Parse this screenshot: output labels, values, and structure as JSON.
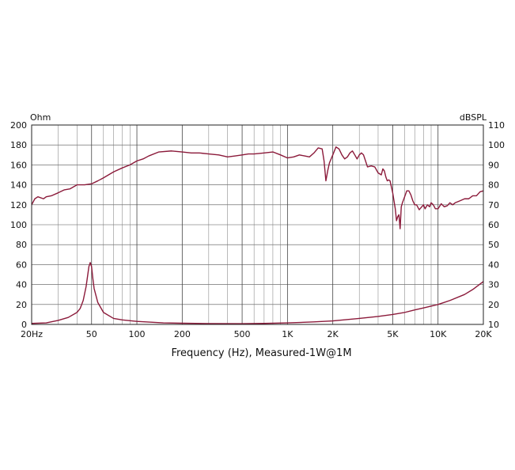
{
  "chart_data": {
    "type": "line",
    "xlabel": "Frequency (Hz), Measured-1W@1M",
    "x_scale": "log",
    "xlim": [
      20,
      20000
    ],
    "x_ticks": [
      {
        "value": 20,
        "label": "20Hz"
      },
      {
        "value": 50,
        "label": "50"
      },
      {
        "value": 100,
        "label": "100"
      },
      {
        "value": 200,
        "label": "200"
      },
      {
        "value": 500,
        "label": "500"
      },
      {
        "value": 1000,
        "label": "1K"
      },
      {
        "value": 2000,
        "label": "2K"
      },
      {
        "value": 5000,
        "label": "5K"
      },
      {
        "value": 10000,
        "label": "10K"
      },
      {
        "value": 20000,
        "label": "20K"
      }
    ],
    "y_left": {
      "unit": "Ohm",
      "lim": [
        0,
        200
      ],
      "ticks": [
        0,
        20,
        40,
        60,
        80,
        100,
        120,
        140,
        160,
        180,
        200
      ]
    },
    "y_right": {
      "unit": "dBSPL",
      "lim": [
        10,
        110
      ],
      "ticks": [
        10,
        20,
        30,
        40,
        50,
        60,
        70,
        80,
        90,
        100,
        110
      ]
    },
    "grid": true,
    "line_color": "#8b1a3a",
    "series": [
      {
        "axis": "right",
        "points": [
          [
            20,
            70
          ],
          [
            21,
            73
          ],
          [
            22,
            74
          ],
          [
            24,
            73
          ],
          [
            25,
            74
          ],
          [
            27,
            74.5
          ],
          [
            30,
            76
          ],
          [
            33,
            77.5
          ],
          [
            36,
            78
          ],
          [
            40,
            80
          ],
          [
            45,
            80
          ],
          [
            50,
            80.5
          ],
          [
            55,
            82
          ],
          [
            60,
            83.5
          ],
          [
            70,
            86.5
          ],
          [
            80,
            88.5
          ],
          [
            90,
            90
          ],
          [
            100,
            92
          ],
          [
            110,
            93
          ],
          [
            120,
            94.5
          ],
          [
            140,
            96.5
          ],
          [
            170,
            97
          ],
          [
            200,
            96.5
          ],
          [
            230,
            96
          ],
          [
            260,
            96
          ],
          [
            300,
            95.5
          ],
          [
            350,
            95
          ],
          [
            400,
            94
          ],
          [
            450,
            94.5
          ],
          [
            500,
            95
          ],
          [
            550,
            95.5
          ],
          [
            600,
            95.5
          ],
          [
            700,
            96
          ],
          [
            800,
            96.5
          ],
          [
            900,
            95
          ],
          [
            1000,
            93.5
          ],
          [
            1100,
            94
          ],
          [
            1200,
            95
          ],
          [
            1300,
            94.5
          ],
          [
            1400,
            94
          ],
          [
            1500,
            96
          ],
          [
            1600,
            98.5
          ],
          [
            1700,
            98
          ],
          [
            1750,
            92
          ],
          [
            1800,
            82
          ],
          [
            1850,
            87
          ],
          [
            1900,
            91
          ],
          [
            2000,
            95
          ],
          [
            2100,
            99
          ],
          [
            2200,
            98
          ],
          [
            2300,
            95
          ],
          [
            2400,
            93
          ],
          [
            2500,
            94
          ],
          [
            2600,
            96
          ],
          [
            2700,
            97
          ],
          [
            2800,
            95
          ],
          [
            2900,
            93
          ],
          [
            3000,
            95
          ],
          [
            3100,
            96
          ],
          [
            3200,
            95
          ],
          [
            3300,
            92
          ],
          [
            3400,
            89
          ],
          [
            3600,
            89.5
          ],
          [
            3800,
            89
          ],
          [
            4000,
            86
          ],
          [
            4200,
            85
          ],
          [
            4300,
            88
          ],
          [
            4400,
            87
          ],
          [
            4500,
            84
          ],
          [
            4600,
            82
          ],
          [
            4700,
            82.5
          ],
          [
            4800,
            82
          ],
          [
            5000,
            76
          ],
          [
            5200,
            68
          ],
          [
            5300,
            62
          ],
          [
            5400,
            64
          ],
          [
            5500,
            65
          ],
          [
            5600,
            58
          ],
          [
            5700,
            69
          ],
          [
            5800,
            71
          ],
          [
            6000,
            74
          ],
          [
            6200,
            77
          ],
          [
            6400,
            77
          ],
          [
            6600,
            75
          ],
          [
            6800,
            72
          ],
          [
            7000,
            70
          ],
          [
            7200,
            70
          ],
          [
            7500,
            67.5
          ],
          [
            7800,
            69
          ],
          [
            8000,
            70
          ],
          [
            8200,
            68
          ],
          [
            8500,
            70
          ],
          [
            8800,
            69
          ],
          [
            9000,
            71
          ],
          [
            9300,
            70
          ],
          [
            9600,
            68
          ],
          [
            10000,
            68
          ],
          [
            10500,
            70.5
          ],
          [
            11000,
            69
          ],
          [
            11500,
            69.5
          ],
          [
            12000,
            71
          ],
          [
            12500,
            70
          ],
          [
            13000,
            71
          ],
          [
            14000,
            72
          ],
          [
            15000,
            73
          ],
          [
            16000,
            73
          ],
          [
            17000,
            74.5
          ],
          [
            18000,
            74.5
          ],
          [
            19000,
            76.5
          ],
          [
            20000,
            77
          ]
        ]
      },
      {
        "axis": "left",
        "points": [
          [
            20,
            1
          ],
          [
            25,
            1.5
          ],
          [
            30,
            4
          ],
          [
            35,
            7
          ],
          [
            40,
            12
          ],
          [
            42,
            16
          ],
          [
            44,
            24
          ],
          [
            46,
            38
          ],
          [
            47,
            48
          ],
          [
            48,
            58
          ],
          [
            49,
            62
          ],
          [
            50,
            58
          ],
          [
            51,
            46
          ],
          [
            52,
            36
          ],
          [
            55,
            22
          ],
          [
            60,
            12
          ],
          [
            70,
            6
          ],
          [
            80,
            4.5
          ],
          [
            100,
            3
          ],
          [
            150,
            1.5
          ],
          [
            200,
            1.2
          ],
          [
            300,
            0.8
          ],
          [
            500,
            0.7
          ],
          [
            700,
            1
          ],
          [
            1000,
            1.5
          ],
          [
            1500,
            2.5
          ],
          [
            2000,
            3.5
          ],
          [
            3000,
            6
          ],
          [
            4000,
            8
          ],
          [
            5000,
            10
          ],
          [
            6000,
            12
          ],
          [
            7000,
            14.5
          ],
          [
            8000,
            16.5
          ],
          [
            10000,
            20
          ],
          [
            12000,
            24
          ],
          [
            15000,
            30
          ],
          [
            17000,
            35
          ],
          [
            20000,
            43
          ]
        ]
      }
    ]
  }
}
